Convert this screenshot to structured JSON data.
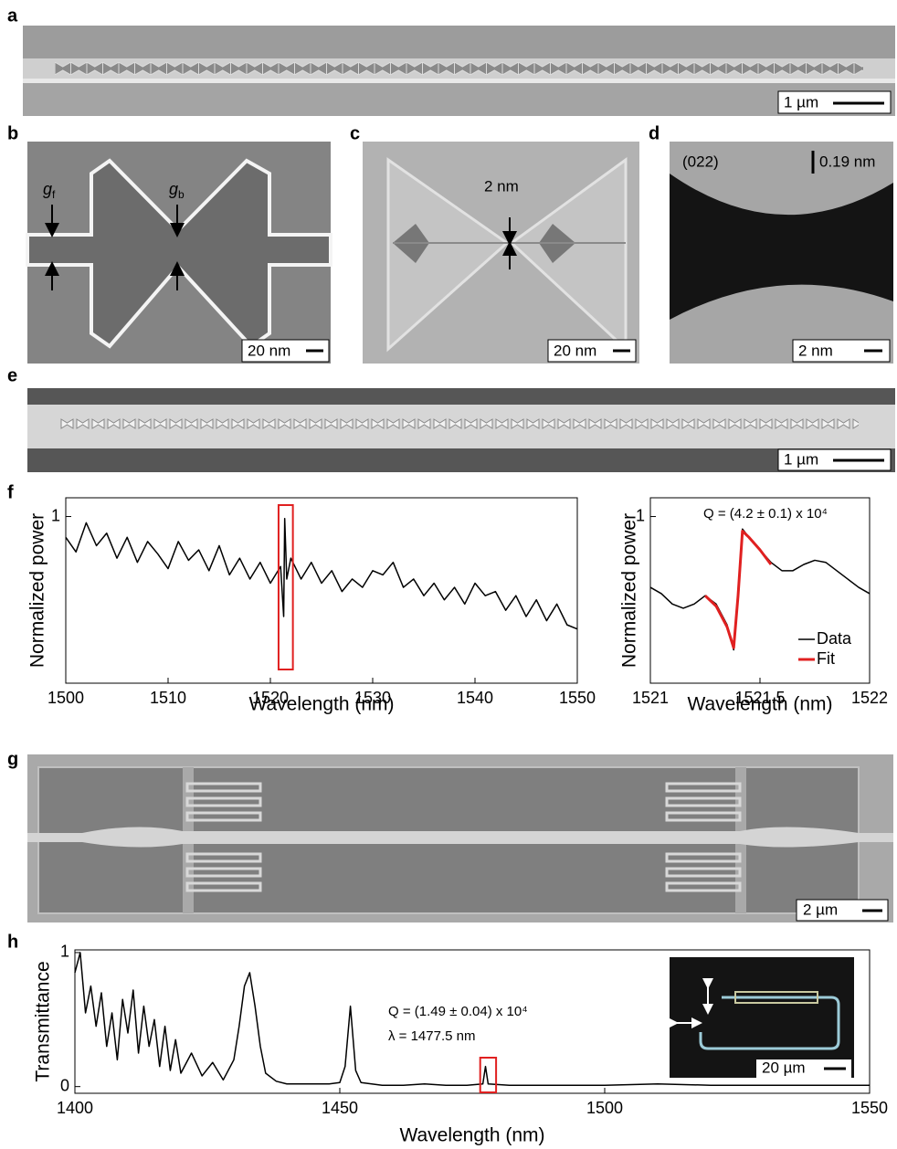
{
  "panel_labels": [
    "a",
    "b",
    "c",
    "d",
    "e",
    "f",
    "g",
    "h"
  ],
  "images": {
    "a": {
      "scale_bar": "1 µm"
    },
    "b": {
      "scale_bar": "20 nm",
      "gap_front": {
        "symbol": "g",
        "subscript": "f"
      },
      "gap_bowtie": {
        "symbol": "g",
        "subscript": "b"
      }
    },
    "c": {
      "scale_bar": "20 nm",
      "gap": "2 nm"
    },
    "d": {
      "scale_bar": "2 nm",
      "plane": "(022)",
      "spacing": "0.19 nm"
    },
    "e": {
      "scale_bar": "1 µm"
    },
    "g": {
      "scale_bar": "2 µm"
    },
    "h_inset": {
      "scale_bar": "20 µm"
    }
  },
  "chart_data": [
    {
      "type": "line",
      "xlabel": "Wavelength (nm)",
      "ylabel": "Normalized power",
      "color": "#000000",
      "x": [
        1500,
        1501,
        1502,
        1503,
        1504,
        1505,
        1506,
        1507,
        1508,
        1509,
        1510,
        1511,
        1512,
        1513,
        1514,
        1515,
        1516,
        1517,
        1518,
        1519,
        1520,
        1521,
        1521.3,
        1521.4,
        1521.6,
        1522,
        1523,
        1524,
        1525,
        1526,
        1527,
        1528,
        1529,
        1530,
        1531,
        1532,
        1533,
        1534,
        1535,
        1536,
        1537,
        1538,
        1539,
        1540,
        1541,
        1542,
        1543,
        1544,
        1545,
        1546,
        1547,
        1548,
        1549,
        1550
      ],
      "values": [
        0.9,
        0.83,
        0.97,
        0.86,
        0.92,
        0.8,
        0.9,
        0.78,
        0.88,
        0.82,
        0.75,
        0.88,
        0.79,
        0.84,
        0.74,
        0.86,
        0.72,
        0.8,
        0.7,
        0.78,
        0.68,
        0.76,
        0.52,
        0.99,
        0.7,
        0.8,
        0.7,
        0.78,
        0.68,
        0.74,
        0.64,
        0.7,
        0.66,
        0.74,
        0.72,
        0.78,
        0.66,
        0.7,
        0.62,
        0.68,
        0.6,
        0.66,
        0.58,
        0.68,
        0.62,
        0.64,
        0.55,
        0.62,
        0.52,
        0.6,
        0.5,
        0.58,
        0.48,
        0.46
      ],
      "xlim": [
        1500,
        1550
      ],
      "xticks": [
        1500,
        1510,
        1520,
        1530,
        1540,
        1550
      ],
      "ylim": [
        0.2,
        1.09
      ],
      "yticks": [
        1
      ],
      "highlight": [
        1520.8,
        1522.2
      ],
      "highlight_color": "#e02020"
    },
    {
      "type": "line",
      "xlabel": "Wavelength (nm)",
      "ylabel": "Normalized power",
      "series": [
        {
          "name": "Data",
          "color": "#000000",
          "x": [
            1521,
            1521.05,
            1521.1,
            1521.15,
            1521.2,
            1521.25,
            1521.3,
            1521.35,
            1521.38,
            1521.4,
            1521.42,
            1521.45,
            1521.5,
            1521.55,
            1521.6,
            1521.65,
            1521.7,
            1521.75,
            1521.8,
            1521.85,
            1521.9,
            1521.95,
            1522
          ],
          "values": [
            0.66,
            0.63,
            0.58,
            0.56,
            0.58,
            0.62,
            0.58,
            0.48,
            0.36,
            0.62,
            0.94,
            0.9,
            0.84,
            0.78,
            0.74,
            0.74,
            0.77,
            0.79,
            0.78,
            0.74,
            0.7,
            0.66,
            0.63
          ]
        },
        {
          "name": "Fit",
          "color": "#e02020",
          "x": [
            1521.25,
            1521.3,
            1521.35,
            1521.38,
            1521.4,
            1521.42,
            1521.45,
            1521.5,
            1521.55
          ],
          "values": [
            0.62,
            0.57,
            0.47,
            0.37,
            0.62,
            0.93,
            0.9,
            0.84,
            0.77
          ]
        }
      ],
      "xlim": [
        1521,
        1522
      ],
      "xticks": [
        1521,
        1521.5,
        1522
      ],
      "ylim": [
        0.2,
        1.09
      ],
      "yticks": [
        1
      ],
      "legend": "lower right",
      "annotations": [
        "Q = (4.2 ± 0.1) x 10⁴"
      ]
    },
    {
      "type": "line",
      "xlabel": "Wavelength (nm)",
      "ylabel": "Transmittance",
      "color": "#000000",
      "x": [
        1400,
        1401,
        1402,
        1403,
        1404,
        1405,
        1406,
        1407,
        1408,
        1409,
        1410,
        1411,
        1412,
        1413,
        1414,
        1415,
        1416,
        1417,
        1418,
        1419,
        1420,
        1422,
        1424,
        1426,
        1428,
        1430,
        1431,
        1432,
        1433,
        1434,
        1435,
        1436,
        1438,
        1440,
        1444,
        1448,
        1450,
        1451,
        1452,
        1453,
        1454,
        1458,
        1462,
        1466,
        1470,
        1474,
        1477,
        1477.5,
        1478,
        1482,
        1490,
        1500,
        1510,
        1520,
        1530,
        1540,
        1550
      ],
      "values": [
        0.85,
        1.0,
        0.55,
        0.75,
        0.45,
        0.7,
        0.3,
        0.55,
        0.2,
        0.65,
        0.4,
        0.72,
        0.25,
        0.6,
        0.3,
        0.5,
        0.15,
        0.45,
        0.12,
        0.35,
        0.1,
        0.25,
        0.08,
        0.18,
        0.05,
        0.2,
        0.45,
        0.75,
        0.85,
        0.6,
        0.3,
        0.1,
        0.04,
        0.02,
        0.02,
        0.02,
        0.03,
        0.15,
        0.6,
        0.12,
        0.03,
        0.01,
        0.01,
        0.02,
        0.01,
        0.01,
        0.02,
        0.15,
        0.02,
        0.01,
        0.01,
        0.01,
        0.02,
        0.01,
        0.01,
        0.01,
        0.01
      ],
      "xlim": [
        1400,
        1550
      ],
      "xticks": [
        1400,
        1450,
        1500,
        1550
      ],
      "ylim": [
        -0.05,
        1.02
      ],
      "yticks": [
        0,
        1
      ],
      "highlight": [
        1476.5,
        1479.5
      ],
      "highlight_color": "#e02020",
      "annotations": [
        "Q = (1.49 ± 0.04) x 10⁴",
        "λ  = 1477.5 nm"
      ]
    }
  ]
}
